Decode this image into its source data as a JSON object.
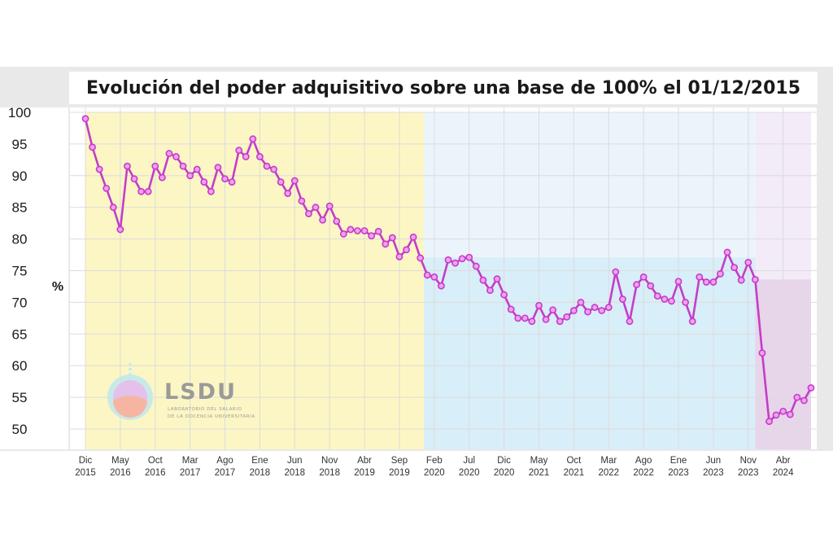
{
  "chart_data": {
    "type": "line",
    "title": "Evolución del poder adquisitivo sobre una base de 100% el 01/12/2015",
    "ylabel": "%",
    "xlabel": "",
    "ylim": [
      48,
      100
    ],
    "yticks": [
      50,
      55,
      60,
      65,
      70,
      75,
      80,
      85,
      90,
      95,
      100
    ],
    "grid": true,
    "legend": "none",
    "line_color": "#c43dc8",
    "marker_fill": "#f2a0f0",
    "x_tick_labels": [
      {
        "month": "Dic",
        "year": "2015",
        "index": 0
      },
      {
        "month": "May",
        "year": "2016",
        "index": 5
      },
      {
        "month": "Oct",
        "year": "2016",
        "index": 10
      },
      {
        "month": "Mar",
        "year": "2017",
        "index": 15
      },
      {
        "month": "Ago",
        "year": "2017",
        "index": 20
      },
      {
        "month": "Ene",
        "year": "2018",
        "index": 25
      },
      {
        "month": "Jun",
        "year": "2018",
        "index": 30
      },
      {
        "month": "Nov",
        "year": "2018",
        "index": 35
      },
      {
        "month": "Abr",
        "year": "2019",
        "index": 40
      },
      {
        "month": "Sep",
        "year": "2019",
        "index": 45
      },
      {
        "month": "Feb",
        "year": "2020",
        "index": 50
      },
      {
        "month": "Jul",
        "year": "2020",
        "index": 55
      },
      {
        "month": "Dic",
        "year": "2020",
        "index": 60
      },
      {
        "month": "May",
        "year": "2021",
        "index": 65
      },
      {
        "month": "Oct",
        "year": "2021",
        "index": 70
      },
      {
        "month": "Mar",
        "year": "2022",
        "index": 75
      },
      {
        "month": "Ago",
        "year": "2022",
        "index": 80
      },
      {
        "month": "Ene",
        "year": "2023",
        "index": 85
      },
      {
        "month": "Jun",
        "year": "2023",
        "index": 90
      },
      {
        "month": "Nov",
        "year": "2023",
        "index": 95
      },
      {
        "month": "Abr",
        "year": "2024",
        "index": 100
      }
    ],
    "shaded_periods": [
      {
        "start_index": 0,
        "end_index": 48.5,
        "top": 100,
        "color": "#fbf6c4"
      },
      {
        "start_index": 48.5,
        "end_index": 96,
        "top": 100,
        "color": "#ecf4fb"
      },
      {
        "start_index": 48.5,
        "end_index": 96,
        "top": 77.1,
        "color": "#d8eef8"
      },
      {
        "start_index": 96,
        "end_index": 104,
        "top": 100,
        "color": "#f3ebf7"
      },
      {
        "start_index": 96,
        "end_index": 104,
        "top": 73.6,
        "color": "#e7d5ea"
      }
    ],
    "series": [
      {
        "values": [
          99,
          94.5,
          91,
          88,
          85,
          81.5,
          91.5,
          89.5,
          87.5,
          87.5,
          91.5,
          89.7,
          93.5,
          93,
          91.5,
          90,
          91,
          89,
          87.5,
          91.3,
          89.5,
          89,
          94,
          93,
          95.8,
          93,
          91.5,
          91,
          89,
          87.2,
          89.2,
          86,
          84,
          85,
          83,
          85.2,
          82.8,
          80.8,
          81.5,
          81.3,
          81.3,
          80.5,
          81.2,
          79.2,
          80.2,
          77.2,
          78.3,
          80.3,
          77,
          74.3,
          74,
          72.6,
          76.7,
          76.2,
          76.9,
          77.1,
          75.7,
          73.5,
          71.9,
          73.7,
          71.2,
          68.9,
          67.5,
          67.5,
          67,
          69.5,
          67.3,
          68.8,
          67,
          67.7,
          68.7,
          70,
          68.5,
          69.2,
          68.7,
          69.2,
          74.8,
          70.5,
          67,
          72.8,
          74,
          72.6,
          71,
          70.5,
          70.2,
          73.3,
          70,
          67,
          74,
          73.2,
          73.2,
          74.5,
          77.9,
          75.5,
          73.5,
          76.3,
          73.6,
          62,
          51.2,
          52.2,
          52.8,
          52.3,
          55,
          54.5,
          56.5
        ]
      }
    ]
  },
  "logo": {
    "name": "LSDU",
    "subtitle_line1": "LABORATORIO DEL SALARIO",
    "subtitle_line2": "DE LA DOCENCIA UNIVERSITARIA"
  }
}
